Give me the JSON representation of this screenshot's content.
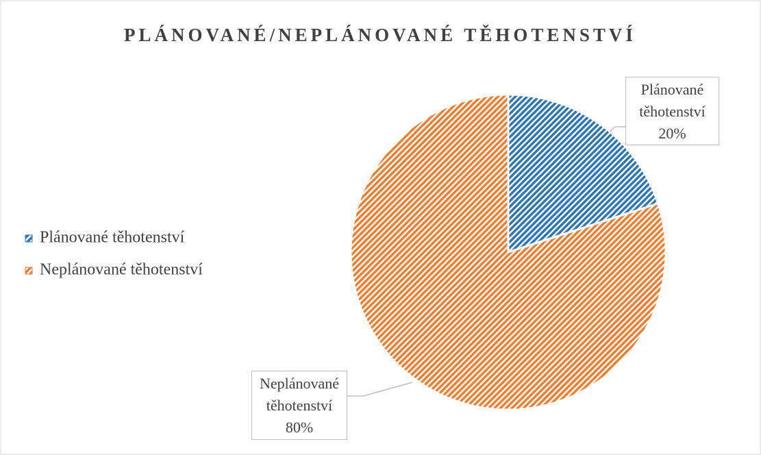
{
  "chart_data": {
    "type": "pie",
    "title": "PLÁNOVANÉ/NEPLÁNOVANÉ TĚHOTENSTVÍ",
    "categories": [
      "Plánované těhotenství",
      "Neplánované těhotenství"
    ],
    "values": [
      20,
      80
    ],
    "value_labels": [
      "20%",
      "80%"
    ],
    "colors": [
      "#2e75b6",
      "#ed7d31"
    ],
    "legend": "left"
  }
}
